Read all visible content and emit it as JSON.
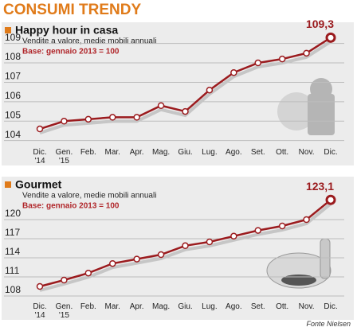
{
  "title": "CONSUMI TRENDY",
  "source": "Fonte Nielsen",
  "chart_data": [
    {
      "type": "line",
      "title": "Happy hour in casa",
      "subtitle": "Vendite a valore, medie mobili annuali",
      "note": "Base: gennaio 2013 = 100",
      "categories": [
        "Dic.\n'14",
        "Gen.\n'15",
        "Feb.",
        "Mar.",
        "Apr.",
        "Mag.",
        "Giu.",
        "Lug.",
        "Ago.",
        "Set.",
        "Ott.",
        "Nov.",
        "Dic."
      ],
      "values": [
        104.6,
        105.0,
        105.1,
        105.2,
        105.2,
        105.8,
        105.5,
        106.6,
        107.5,
        108.0,
        108.2,
        108.5,
        109.3
      ],
      "value_labels": [
        null,
        null,
        null,
        null,
        null,
        null,
        null,
        null,
        null,
        null,
        null,
        null,
        "109,3"
      ],
      "color": "#9b1b1e",
      "ylim": [
        103.7,
        109.6
      ],
      "yticks": [
        104,
        105,
        106,
        107,
        108,
        109
      ],
      "grid": true
    },
    {
      "type": "line",
      "title": "Gourmet",
      "subtitle": "Vendite a valore, medie mobili annuali",
      "note": "Base: gennaio 2013 = 100",
      "categories": [
        "Dic.\n'14",
        "Gen.\n'15",
        "Feb.",
        "Mar.",
        "Apr.",
        "Mag.",
        "Giu.",
        "Lug.",
        "Ago.",
        "Set.",
        "Ott.",
        "Nov.",
        "Dic."
      ],
      "values": [
        109.5,
        110.5,
        111.6,
        113.1,
        113.8,
        114.5,
        115.9,
        116.5,
        117.4,
        118.3,
        119.0,
        120.0,
        123.1
      ],
      "value_labels": [
        null,
        null,
        null,
        null,
        null,
        null,
        null,
        null,
        null,
        null,
        null,
        null,
        "123,1"
      ],
      "color": "#9b1b1e",
      "ylim": [
        106.5,
        124
      ],
      "yticks": [
        108,
        111,
        114,
        117,
        120
      ],
      "grid": true
    }
  ]
}
